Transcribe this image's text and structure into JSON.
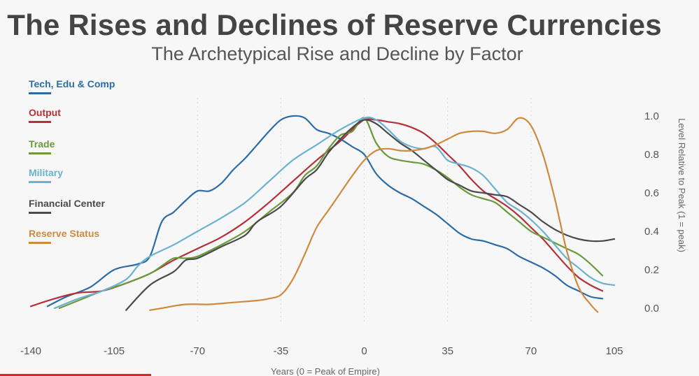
{
  "chart_data": {
    "type": "line",
    "title": "The Rises and Declines of Reserve Currencies",
    "subtitle": "The Archetypical Rise and Decline by Factor",
    "xlabel": "Years (0 = Peak of Empire)",
    "ylabel": "Level Relative to Peak (1 = peak)",
    "xlim": [
      -140,
      105
    ],
    "ylim": [
      0,
      1
    ],
    "x_ticks": [
      -140,
      -105,
      -70,
      -35,
      0,
      35,
      70,
      105
    ],
    "x_tick_labels": [
      "-140",
      "-105",
      "-70",
      "-35",
      "0",
      "35",
      "70",
      "105"
    ],
    "y_ticks": [
      0,
      0.2,
      0.4,
      0.6,
      0.8,
      1.0
    ],
    "y_tick_labels": [
      "0.0",
      "0.2",
      "0.4",
      "0.6",
      "0.8",
      "1.0"
    ],
    "vertical_gridlines": [
      -70,
      -35,
      0,
      35,
      70
    ],
    "legend_position": "left",
    "series": [
      {
        "name": "Tech, Edu & Comp",
        "color": "#2b6ba6",
        "points": [
          [
            -133,
            0.01
          ],
          [
            -125,
            0.06
          ],
          [
            -115,
            0.11
          ],
          [
            -105,
            0.2
          ],
          [
            -95,
            0.23
          ],
          [
            -90,
            0.27
          ],
          [
            -85,
            0.45
          ],
          [
            -80,
            0.5
          ],
          [
            -75,
            0.56
          ],
          [
            -70,
            0.61
          ],
          [
            -65,
            0.61
          ],
          [
            -60,
            0.65
          ],
          [
            -55,
            0.72
          ],
          [
            -50,
            0.78
          ],
          [
            -45,
            0.85
          ],
          [
            -40,
            0.92
          ],
          [
            -35,
            0.98
          ],
          [
            -30,
            1.0
          ],
          [
            -25,
            0.99
          ],
          [
            -20,
            0.93
          ],
          [
            -15,
            0.91
          ],
          [
            -10,
            0.88
          ],
          [
            -5,
            0.84
          ],
          [
            0,
            0.8
          ],
          [
            5,
            0.7
          ],
          [
            10,
            0.64
          ],
          [
            15,
            0.6
          ],
          [
            20,
            0.57
          ],
          [
            25,
            0.53
          ],
          [
            30,
            0.49
          ],
          [
            35,
            0.44
          ],
          [
            40,
            0.39
          ],
          [
            45,
            0.36
          ],
          [
            50,
            0.35
          ],
          [
            55,
            0.33
          ],
          [
            60,
            0.31
          ],
          [
            65,
            0.27
          ],
          [
            70,
            0.24
          ],
          [
            75,
            0.21
          ],
          [
            80,
            0.17
          ],
          [
            85,
            0.12
          ],
          [
            90,
            0.09
          ],
          [
            95,
            0.06
          ],
          [
            100,
            0.05
          ]
        ]
      },
      {
        "name": "Output",
        "color": "#b5313a",
        "points": [
          [
            -140,
            0.01
          ],
          [
            -130,
            0.05
          ],
          [
            -120,
            0.08
          ],
          [
            -110,
            0.09
          ],
          [
            -100,
            0.13
          ],
          [
            -90,
            0.18
          ],
          [
            -80,
            0.25
          ],
          [
            -70,
            0.31
          ],
          [
            -60,
            0.37
          ],
          [
            -50,
            0.45
          ],
          [
            -40,
            0.55
          ],
          [
            -30,
            0.66
          ],
          [
            -20,
            0.77
          ],
          [
            -10,
            0.87
          ],
          [
            -5,
            0.93
          ],
          [
            0,
            0.98
          ],
          [
            5,
            0.98
          ],
          [
            10,
            0.97
          ],
          [
            15,
            0.96
          ],
          [
            20,
            0.94
          ],
          [
            25,
            0.91
          ],
          [
            30,
            0.86
          ],
          [
            35,
            0.8
          ],
          [
            40,
            0.74
          ],
          [
            45,
            0.67
          ],
          [
            50,
            0.61
          ],
          [
            55,
            0.57
          ],
          [
            60,
            0.53
          ],
          [
            65,
            0.48
          ],
          [
            70,
            0.42
          ],
          [
            75,
            0.36
          ],
          [
            80,
            0.29
          ],
          [
            85,
            0.22
          ],
          [
            90,
            0.16
          ],
          [
            95,
            0.12
          ],
          [
            100,
            0.09
          ]
        ]
      },
      {
        "name": "Trade",
        "color": "#6a9a3a",
        "points": [
          [
            -128,
            0.0
          ],
          [
            -120,
            0.04
          ],
          [
            -110,
            0.09
          ],
          [
            -100,
            0.13
          ],
          [
            -90,
            0.18
          ],
          [
            -85,
            0.22
          ],
          [
            -80,
            0.26
          ],
          [
            -75,
            0.26
          ],
          [
            -70,
            0.27
          ],
          [
            -60,
            0.33
          ],
          [
            -50,
            0.4
          ],
          [
            -40,
            0.5
          ],
          [
            -30,
            0.6
          ],
          [
            -25,
            0.69
          ],
          [
            -20,
            0.74
          ],
          [
            -15,
            0.83
          ],
          [
            -10,
            0.9
          ],
          [
            -5,
            0.92
          ],
          [
            0,
            0.99
          ],
          [
            5,
            0.86
          ],
          [
            10,
            0.79
          ],
          [
            15,
            0.77
          ],
          [
            20,
            0.76
          ],
          [
            25,
            0.75
          ],
          [
            30,
            0.72
          ],
          [
            35,
            0.68
          ],
          [
            40,
            0.63
          ],
          [
            45,
            0.59
          ],
          [
            50,
            0.57
          ],
          [
            55,
            0.55
          ],
          [
            60,
            0.5
          ],
          [
            65,
            0.45
          ],
          [
            70,
            0.4
          ],
          [
            75,
            0.37
          ],
          [
            80,
            0.34
          ],
          [
            85,
            0.31
          ],
          [
            90,
            0.28
          ],
          [
            95,
            0.23
          ],
          [
            100,
            0.17
          ]
        ]
      },
      {
        "name": "Military",
        "color": "#6ab2d0",
        "points": [
          [
            -130,
            0.0
          ],
          [
            -120,
            0.05
          ],
          [
            -110,
            0.09
          ],
          [
            -100,
            0.15
          ],
          [
            -95,
            0.22
          ],
          [
            -90,
            0.27
          ],
          [
            -80,
            0.33
          ],
          [
            -70,
            0.4
          ],
          [
            -60,
            0.47
          ],
          [
            -50,
            0.55
          ],
          [
            -40,
            0.66
          ],
          [
            -30,
            0.77
          ],
          [
            -20,
            0.85
          ],
          [
            -10,
            0.93
          ],
          [
            0,
            0.99
          ],
          [
            5,
            0.98
          ],
          [
            10,
            0.93
          ],
          [
            15,
            0.87
          ],
          [
            20,
            0.84
          ],
          [
            25,
            0.83
          ],
          [
            30,
            0.84
          ],
          [
            35,
            0.77
          ],
          [
            40,
            0.75
          ],
          [
            45,
            0.73
          ],
          [
            50,
            0.69
          ],
          [
            55,
            0.62
          ],
          [
            60,
            0.55
          ],
          [
            65,
            0.51
          ],
          [
            70,
            0.46
          ],
          [
            75,
            0.4
          ],
          [
            80,
            0.33
          ],
          [
            85,
            0.26
          ],
          [
            90,
            0.21
          ],
          [
            95,
            0.16
          ],
          [
            100,
            0.13
          ],
          [
            105,
            0.12
          ]
        ]
      },
      {
        "name": "Financial Center",
        "color": "#4a4a4a",
        "points": [
          [
            -100,
            -0.01
          ],
          [
            -90,
            0.12
          ],
          [
            -80,
            0.19
          ],
          [
            -75,
            0.25
          ],
          [
            -70,
            0.26
          ],
          [
            -60,
            0.32
          ],
          [
            -50,
            0.38
          ],
          [
            -45,
            0.45
          ],
          [
            -35,
            0.53
          ],
          [
            -25,
            0.67
          ],
          [
            -20,
            0.72
          ],
          [
            -15,
            0.81
          ],
          [
            -10,
            0.88
          ],
          [
            -5,
            0.94
          ],
          [
            0,
            0.98
          ],
          [
            5,
            0.96
          ],
          [
            10,
            0.91
          ],
          [
            15,
            0.86
          ],
          [
            20,
            0.82
          ],
          [
            25,
            0.77
          ],
          [
            30,
            0.72
          ],
          [
            35,
            0.67
          ],
          [
            40,
            0.64
          ],
          [
            45,
            0.61
          ],
          [
            50,
            0.6
          ],
          [
            55,
            0.59
          ],
          [
            60,
            0.58
          ],
          [
            65,
            0.54
          ],
          [
            70,
            0.5
          ],
          [
            75,
            0.45
          ],
          [
            80,
            0.41
          ],
          [
            85,
            0.38
          ],
          [
            90,
            0.36
          ],
          [
            95,
            0.35
          ],
          [
            100,
            0.35
          ],
          [
            105,
            0.36
          ]
        ]
      },
      {
        "name": "Reserve Status",
        "color": "#cf8a3e",
        "points": [
          [
            -90,
            -0.01
          ],
          [
            -85,
            0.0
          ],
          [
            -75,
            0.02
          ],
          [
            -65,
            0.02
          ],
          [
            -55,
            0.03
          ],
          [
            -45,
            0.04
          ],
          [
            -40,
            0.05
          ],
          [
            -35,
            0.07
          ],
          [
            -30,
            0.15
          ],
          [
            -25,
            0.28
          ],
          [
            -20,
            0.42
          ],
          [
            -15,
            0.51
          ],
          [
            -10,
            0.6
          ],
          [
            -5,
            0.69
          ],
          [
            0,
            0.77
          ],
          [
            5,
            0.82
          ],
          [
            10,
            0.83
          ],
          [
            15,
            0.82
          ],
          [
            20,
            0.82
          ],
          [
            25,
            0.83
          ],
          [
            30,
            0.85
          ],
          [
            35,
            0.88
          ],
          [
            40,
            0.91
          ],
          [
            45,
            0.92
          ],
          [
            50,
            0.92
          ],
          [
            55,
            0.91
          ],
          [
            60,
            0.93
          ],
          [
            65,
            0.99
          ],
          [
            70,
            0.95
          ],
          [
            75,
            0.8
          ],
          [
            80,
            0.57
          ],
          [
            85,
            0.3
          ],
          [
            90,
            0.11
          ],
          [
            95,
            0.02
          ],
          [
            98,
            -0.02
          ]
        ]
      }
    ]
  }
}
